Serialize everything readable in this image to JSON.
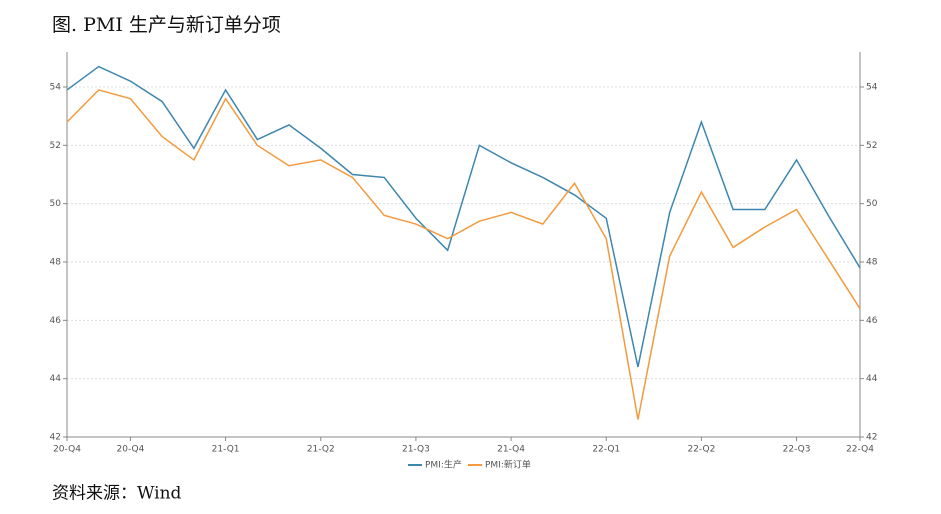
{
  "chart_data": {
    "type": "line",
    "title": "图. PMI 生产与新订单分项",
    "source": "资料来源：Wind",
    "categories": [
      "20-Q4",
      null,
      "20-Q4",
      null,
      null,
      "21-Q1",
      null,
      null,
      "21-Q2",
      null,
      null,
      "21-Q3",
      null,
      null,
      "21-Q4",
      null,
      null,
      "22-Q1",
      null,
      null,
      "22-Q2",
      null,
      null,
      "22-Q3",
      null,
      "22-Q4"
    ],
    "series": [
      {
        "name": "PMI:生产",
        "color": "#3d86b0",
        "values": [
          53.9,
          54.7,
          54.2,
          53.5,
          51.9,
          53.9,
          52.2,
          52.7,
          51.9,
          51.0,
          50.9,
          49.5,
          48.4,
          52.0,
          51.4,
          50.9,
          50.3,
          49.5,
          44.4,
          49.7,
          52.8,
          49.8,
          49.8,
          51.5,
          49.6,
          47.8
        ]
      },
      {
        "name": "PMI:新订单",
        "color": "#f39a3f",
        "values": [
          52.8,
          53.9,
          53.6,
          52.3,
          51.5,
          53.6,
          52.0,
          51.3,
          51.5,
          50.9,
          49.6,
          49.3,
          48.8,
          49.4,
          49.7,
          49.3,
          50.7,
          48.8,
          42.6,
          48.2,
          50.4,
          48.5,
          49.2,
          49.8,
          48.1,
          46.4
        ]
      }
    ],
    "ylim": [
      42,
      55.2
    ],
    "yticks": [
      42,
      44,
      46,
      48,
      50,
      52,
      54
    ],
    "y2lim": [
      42,
      55.2
    ],
    "y2ticks": [
      42,
      44,
      46,
      48,
      50,
      52,
      54
    ],
    "grid": true,
    "legend": "bottom"
  }
}
